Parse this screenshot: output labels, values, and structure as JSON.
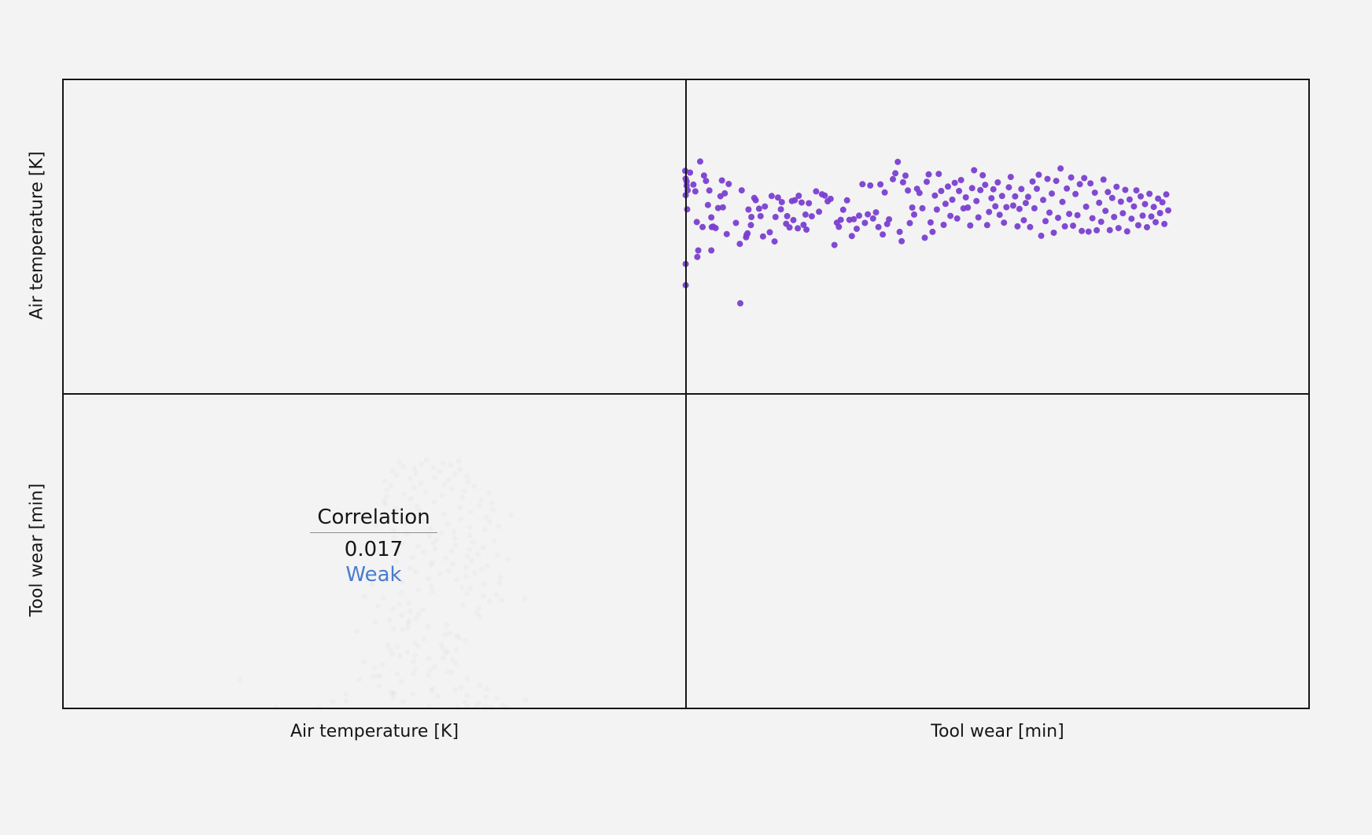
{
  "chart_data": {
    "type": "scatter",
    "variables": [
      "Air temperature [K]",
      "Tool wear [min]"
    ],
    "correlation": {
      "title": "Correlation",
      "value": "0.017",
      "strength": "Weak"
    },
    "colors": {
      "points": "#7a3fd0",
      "strength": "#4a7bd0",
      "grid": "#161616"
    },
    "x_range": [
      0,
      100
    ],
    "y_range": [
      0,
      100
    ],
    "points": [
      [
        0.0,
        83.7
      ],
      [
        0.1,
        80.1
      ],
      [
        0.1,
        72.6
      ],
      [
        0.1,
        41.1
      ],
      [
        0.1,
        31.4
      ],
      [
        0.3,
        78.8
      ],
      [
        0.3,
        76.9
      ],
      [
        0.4,
        66.1
      ],
      [
        0.5,
        74.8
      ],
      [
        1.0,
        82.9
      ],
      [
        1.7,
        77.4
      ],
      [
        2.1,
        74.3
      ],
      [
        2.4,
        60.3
      ],
      [
        2.5,
        44.3
      ],
      [
        2.7,
        47.3
      ],
      [
        3.1,
        88.0
      ],
      [
        3.6,
        58.0
      ],
      [
        3.9,
        81.6
      ],
      [
        4.3,
        79.1
      ],
      [
        4.7,
        68.1
      ],
      [
        5.0,
        74.7
      ],
      [
        5.4,
        62.4
      ],
      [
        5.4,
        47.3
      ],
      [
        5.5,
        58.0
      ],
      [
        5.8,
        58.2
      ],
      [
        6.3,
        57.5
      ],
      [
        6.8,
        66.7
      ],
      [
        7.3,
        72.1
      ],
      [
        7.6,
        79.3
      ],
      [
        7.8,
        67.0
      ],
      [
        8.2,
        73.4
      ],
      [
        8.6,
        54.8
      ],
      [
        9.0,
        77.7
      ],
      [
        10.5,
        59.9
      ],
      [
        11.3,
        50.3
      ],
      [
        11.4,
        23.1
      ],
      [
        11.7,
        74.8
      ],
      [
        12.6,
        53.3
      ],
      [
        12.7,
        54.3
      ],
      [
        12.9,
        55.1
      ],
      [
        13.1,
        66.0
      ],
      [
        13.6,
        58.9
      ],
      [
        13.7,
        62.6
      ],
      [
        14.3,
        71.3
      ],
      [
        14.6,
        70.3
      ],
      [
        15.3,
        66.4
      ],
      [
        15.6,
        63.0
      ],
      [
        16.1,
        53.7
      ],
      [
        16.5,
        67.4
      ],
      [
        17.5,
        55.6
      ],
      [
        17.9,
        72.2
      ],
      [
        18.5,
        51.4
      ],
      [
        18.7,
        62.6
      ],
      [
        19.2,
        71.5
      ],
      [
        19.8,
        66.1
      ],
      [
        20.0,
        69.4
      ],
      [
        20.9,
        59.5
      ],
      [
        21.1,
        63.0
      ],
      [
        21.6,
        57.8
      ],
      [
        22.1,
        69.9
      ],
      [
        22.4,
        61.2
      ],
      [
        22.7,
        70.3
      ],
      [
        23.3,
        57.4
      ],
      [
        23.5,
        72.3
      ],
      [
        24.1,
        69.2
      ],
      [
        24.5,
        59.0
      ],
      [
        24.9,
        63.7
      ],
      [
        25.1,
        56.8
      ],
      [
        25.6,
        68.9
      ],
      [
        26.2,
        62.9
      ],
      [
        27.1,
        74.3
      ],
      [
        27.7,
        65.0
      ],
      [
        28.3,
        73.0
      ],
      [
        28.9,
        72.4
      ],
      [
        29.5,
        69.8
      ],
      [
        30.1,
        70.9
      ],
      [
        30.9,
        49.8
      ],
      [
        31.4,
        60.0
      ],
      [
        31.8,
        58.1
      ],
      [
        32.2,
        61.3
      ],
      [
        32.7,
        65.9
      ],
      [
        33.5,
        70.2
      ],
      [
        34.0,
        61.3
      ],
      [
        34.5,
        53.9
      ],
      [
        34.9,
        61.6
      ],
      [
        35.5,
        57.2
      ],
      [
        36.0,
        63.2
      ],
      [
        36.7,
        77.6
      ],
      [
        37.2,
        59.9
      ],
      [
        37.8,
        63.8
      ],
      [
        38.3,
        77.0
      ],
      [
        38.9,
        61.9
      ],
      [
        39.5,
        64.7
      ],
      [
        40.0,
        58.0
      ],
      [
        40.4,
        77.5
      ],
      [
        40.9,
        54.6
      ],
      [
        41.3,
        73.8
      ],
      [
        41.8,
        59.4
      ],
      [
        42.2,
        61.5
      ],
      [
        43.0,
        79.9
      ],
      [
        43.5,
        82.6
      ],
      [
        44.0,
        87.8
      ],
      [
        44.4,
        55.8
      ],
      [
        44.8,
        51.5
      ],
      [
        45.1,
        78.5
      ],
      [
        45.6,
        81.5
      ],
      [
        46.1,
        74.7
      ],
      [
        46.5,
        59.8
      ],
      [
        47.0,
        66.9
      ],
      [
        47.4,
        63.7
      ],
      [
        48.0,
        75.5
      ],
      [
        48.5,
        73.6
      ],
      [
        49.1,
        66.6
      ],
      [
        49.6,
        53.1
      ],
      [
        50.0,
        78.7
      ],
      [
        50.4,
        82.1
      ],
      [
        50.8,
        60.1
      ],
      [
        51.2,
        55.8
      ],
      [
        51.7,
        72.4
      ],
      [
        52.1,
        66.0
      ],
      [
        52.5,
        82.3
      ],
      [
        53.0,
        74.5
      ],
      [
        53.5,
        59.0
      ],
      [
        53.9,
        68.6
      ],
      [
        54.4,
        76.5
      ],
      [
        54.9,
        63.1
      ],
      [
        55.3,
        70.5
      ],
      [
        55.8,
        78.2
      ],
      [
        56.3,
        61.9
      ],
      [
        56.7,
        74.5
      ],
      [
        57.1,
        79.5
      ],
      [
        57.6,
        66.5
      ],
      [
        58.1,
        71.6
      ],
      [
        58.5,
        66.9
      ],
      [
        59.0,
        58.7
      ],
      [
        59.4,
        75.8
      ],
      [
        59.8,
        84.0
      ],
      [
        60.3,
        69.9
      ],
      [
        60.7,
        62.4
      ],
      [
        61.1,
        74.9
      ],
      [
        61.6,
        81.7
      ],
      [
        62.1,
        77.3
      ],
      [
        62.5,
        58.9
      ],
      [
        62.9,
        64.9
      ],
      [
        63.4,
        71.2
      ],
      [
        63.8,
        75.3
      ],
      [
        64.2,
        67.5
      ],
      [
        64.7,
        78.4
      ],
      [
        65.1,
        63.6
      ],
      [
        65.6,
        72.2
      ],
      [
        66.0,
        60.0
      ],
      [
        66.5,
        67.1
      ],
      [
        67.0,
        76.2
      ],
      [
        67.4,
        80.9
      ],
      [
        67.9,
        67.8
      ],
      [
        68.3,
        72.0
      ],
      [
        68.8,
        58.3
      ],
      [
        69.2,
        66.3
      ],
      [
        69.6,
        75.4
      ],
      [
        70.1,
        61.1
      ],
      [
        70.5,
        69.0
      ],
      [
        71.0,
        71.8
      ],
      [
        71.4,
        58.0
      ],
      [
        71.9,
        78.8
      ],
      [
        72.3,
        66.6
      ],
      [
        72.8,
        75.5
      ],
      [
        73.2,
        81.9
      ],
      [
        73.7,
        54.0
      ],
      [
        74.1,
        70.4
      ],
      [
        74.6,
        60.7
      ],
      [
        75.0,
        80.0
      ],
      [
        75.4,
        64.6
      ],
      [
        75.9,
        73.3
      ],
      [
        76.3,
        55.4
      ],
      [
        76.8,
        79.1
      ],
      [
        77.2,
        62.2
      ],
      [
        77.7,
        84.8
      ],
      [
        78.1,
        69.5
      ],
      [
        78.6,
        58.3
      ],
      [
        79.0,
        75.6
      ],
      [
        79.5,
        64.0
      ],
      [
        79.9,
        80.7
      ],
      [
        80.3,
        58.6
      ],
      [
        80.8,
        73.1
      ],
      [
        81.2,
        63.4
      ],
      [
        81.7,
        77.6
      ],
      [
        82.1,
        56.2
      ],
      [
        82.6,
        80.4
      ],
      [
        83.0,
        67.3
      ],
      [
        83.5,
        55.9
      ],
      [
        83.9,
        78.0
      ],
      [
        84.3,
        62.0
      ],
      [
        84.8,
        73.7
      ],
      [
        85.2,
        56.5
      ],
      [
        85.7,
        69.1
      ],
      [
        86.1,
        60.4
      ],
      [
        86.6,
        79.7
      ],
      [
        87.0,
        65.4
      ],
      [
        87.5,
        74.0
      ],
      [
        87.9,
        56.6
      ],
      [
        88.4,
        71.3
      ],
      [
        88.8,
        62.6
      ],
      [
        89.3,
        76.4
      ],
      [
        89.7,
        57.5
      ],
      [
        90.2,
        69.6
      ],
      [
        90.6,
        64.3
      ],
      [
        91.1,
        75.0
      ],
      [
        91.5,
        56.0
      ],
      [
        92.0,
        70.6
      ],
      [
        92.4,
        61.8
      ],
      [
        92.9,
        67.4
      ],
      [
        93.4,
        74.8
      ],
      [
        93.8,
        58.8
      ],
      [
        94.3,
        72.0
      ],
      [
        94.7,
        63.2
      ],
      [
        95.2,
        68.5
      ],
      [
        95.6,
        57.9
      ],
      [
        96.1,
        73.2
      ],
      [
        96.5,
        62.8
      ],
      [
        97.0,
        67.2
      ],
      [
        97.4,
        60.2
      ],
      [
        97.9,
        71.0
      ],
      [
        98.3,
        64.4
      ],
      [
        98.8,
        69.3
      ],
      [
        99.2,
        59.4
      ],
      [
        99.6,
        72.9
      ],
      [
        100.0,
        65.6
      ]
    ]
  }
}
